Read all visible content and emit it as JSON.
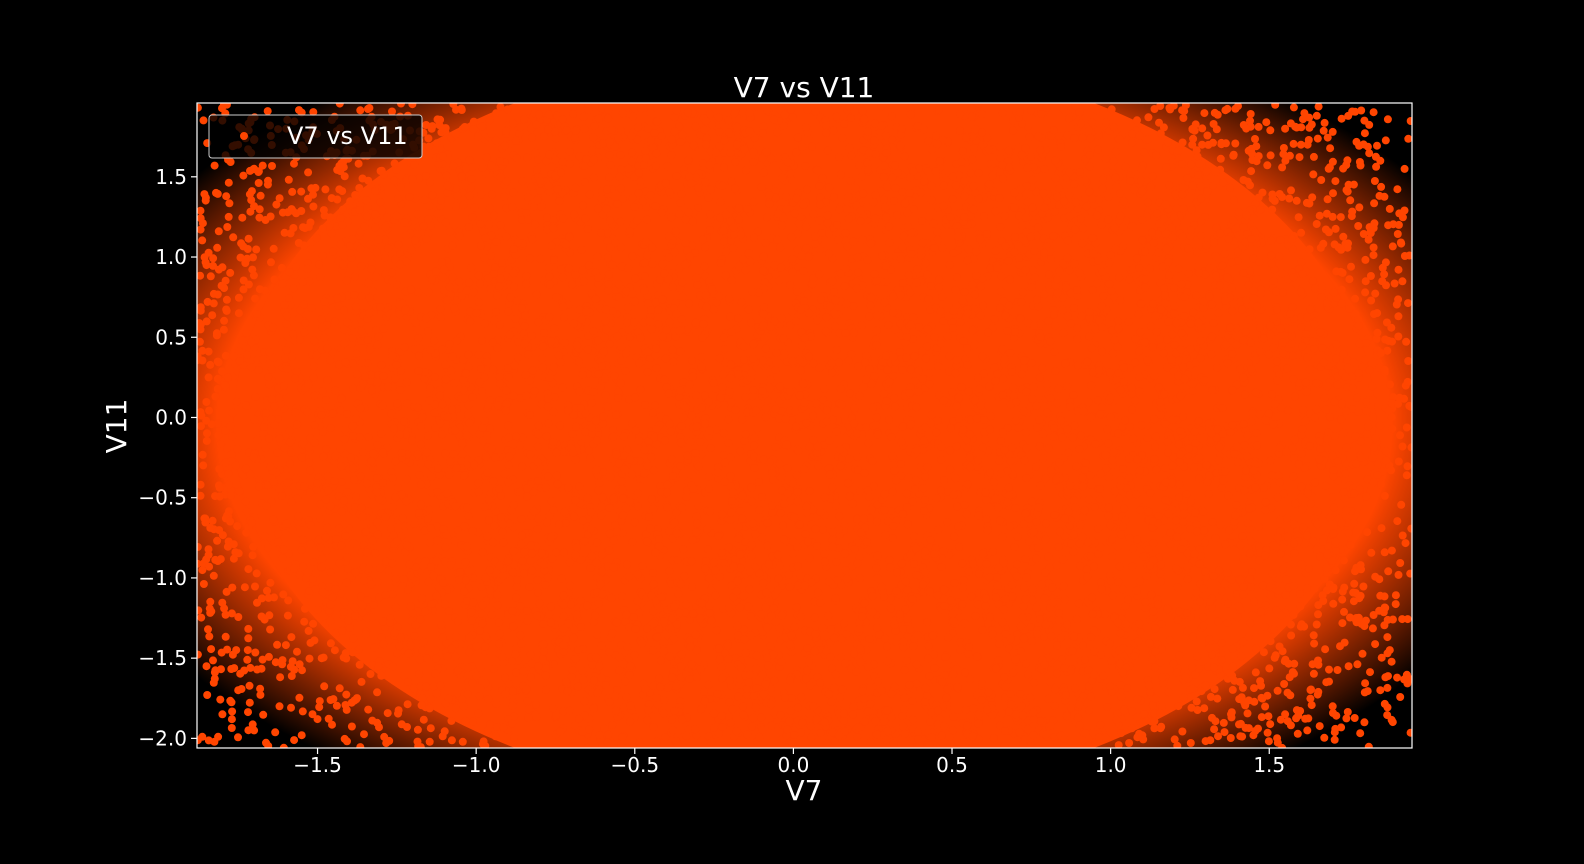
{
  "chart_data": {
    "type": "scatter",
    "title": "V7 vs V11",
    "xlabel": "V7",
    "ylabel": "V11",
    "xlim": [
      -1.88,
      1.95
    ],
    "ylim": [
      -2.06,
      1.96
    ],
    "xticks": [
      -1.5,
      -1.0,
      -0.5,
      0.0,
      0.5,
      1.0,
      1.5
    ],
    "xtick_labels": [
      "−1.5",
      "−1.0",
      "−0.5",
      "0.0",
      "0.5",
      "1.0",
      "1.5"
    ],
    "yticks": [
      -2.0,
      -1.5,
      -1.0,
      -0.5,
      0.0,
      0.5,
      1.0,
      1.5
    ],
    "ytick_labels": [
      "−2.0",
      "−1.5",
      "−1.0",
      "−0.5",
      "0.0",
      "0.5",
      "1.0",
      "1.5"
    ],
    "grid": false,
    "legend_position": "top-left",
    "background": "#000000",
    "foreground": "#ffffff",
    "series": [
      {
        "name": "V7 vs V11",
        "color": "#ff4500",
        "distribution": "dense cloud filling the whole plot area, sparsest toward the four corners",
        "points": [
          [
            -1.8,
            1.85
          ],
          [
            -1.75,
            1.7
          ],
          [
            -1.7,
            1.55
          ],
          [
            -1.82,
            1.4
          ],
          [
            -1.65,
            1.82
          ],
          [
            -1.78,
            1.25
          ],
          [
            -1.6,
            1.65
          ],
          [
            -1.72,
            1.05
          ],
          [
            -1.55,
            1.9
          ],
          [
            -1.85,
            0.95
          ],
          [
            1.8,
            1.85
          ],
          [
            1.7,
            1.78
          ],
          [
            1.85,
            1.6
          ],
          [
            1.6,
            1.7
          ],
          [
            1.75,
            1.45
          ],
          [
            1.88,
            1.3
          ],
          [
            1.65,
            1.88
          ],
          [
            1.55,
            1.8
          ],
          [
            1.82,
            1.15
          ],
          [
            1.7,
            1.25
          ],
          [
            -1.8,
            -1.85
          ],
          [
            -1.7,
            -1.95
          ],
          [
            -1.75,
            -1.7
          ],
          [
            -1.62,
            -1.8
          ],
          [
            -1.85,
            -1.55
          ],
          [
            -1.55,
            -1.98
          ],
          [
            -1.72,
            -1.45
          ],
          [
            -1.5,
            -1.88
          ],
          [
            1.8,
            -1.9
          ],
          [
            1.7,
            -1.8
          ],
          [
            1.85,
            -1.7
          ],
          [
            1.62,
            -1.95
          ],
          [
            1.75,
            -1.55
          ],
          [
            1.55,
            -1.85
          ],
          [
            1.88,
            -1.45
          ],
          [
            1.68,
            -1.65
          ],
          [
            1.45,
            -1.98
          ],
          [
            1.8,
            -1.3
          ]
        ]
      }
    ]
  }
}
